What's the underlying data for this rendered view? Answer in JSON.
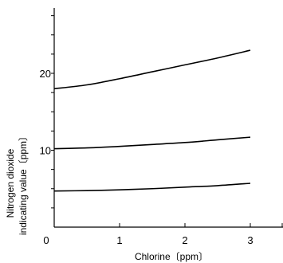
{
  "chart_data": {
    "type": "line",
    "xlabel": "Chlorine〔ppm〕",
    "ylabel_lines": [
      "Nitrogen dioxide",
      "indicating value〔ppm〕"
    ],
    "xlim": [
      0,
      3.5
    ],
    "ylim": [
      0,
      28.5
    ],
    "x_ticks": [
      0,
      1,
      2,
      3
    ],
    "x_tick_labels": [
      "0",
      "1",
      "2",
      "3"
    ],
    "y_minor_ticks": [
      2.5,
      5,
      7.5,
      10,
      12.5,
      15,
      17.5,
      20,
      22.5,
      25,
      27.5
    ],
    "y_tick_labels": [
      {
        "value": 10,
        "label": "10"
      },
      {
        "value": 20,
        "label": "20"
      }
    ],
    "grid": false,
    "series": [
      {
        "color": "#000000",
        "x": [
          0,
          0.5,
          1,
          1.5,
          2,
          2.5,
          3
        ],
        "y": [
          18.0,
          18.5,
          19.3,
          20.2,
          21.1,
          22.0,
          23.0
        ]
      },
      {
        "color": "#000000",
        "x": [
          0,
          0.5,
          1,
          1.5,
          2,
          2.5,
          3
        ],
        "y": [
          10.2,
          10.3,
          10.5,
          10.75,
          11.0,
          11.35,
          11.7
        ]
      },
      {
        "color": "#000000",
        "x": [
          0,
          0.5,
          1,
          1.5,
          2,
          2.5,
          3
        ],
        "y": [
          4.7,
          4.75,
          4.85,
          5.0,
          5.2,
          5.4,
          5.7
        ]
      }
    ]
  }
}
